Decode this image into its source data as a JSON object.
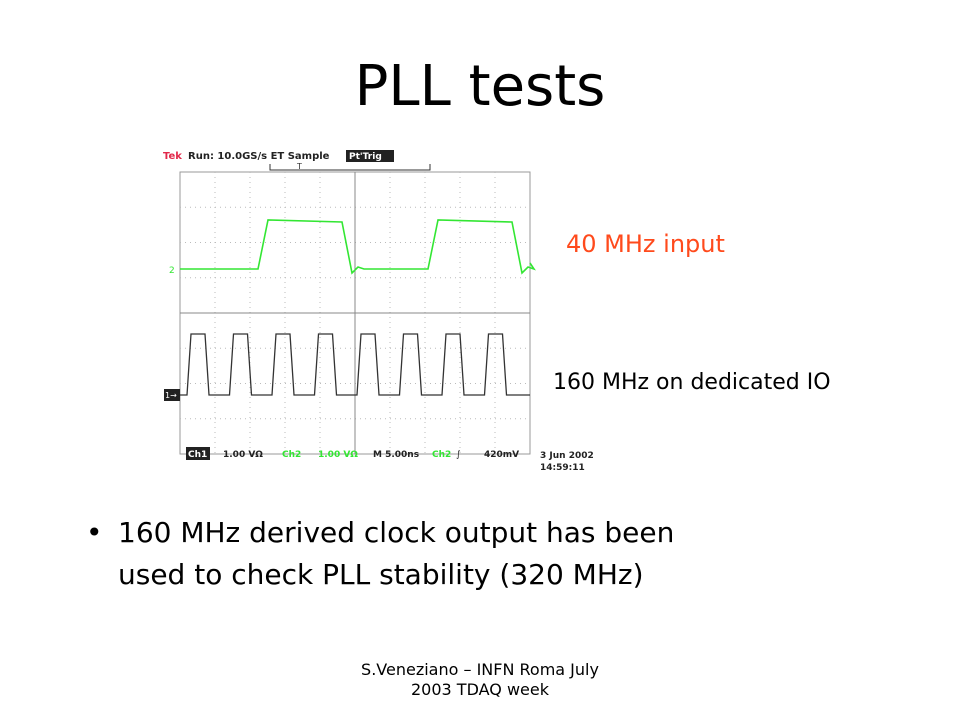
{
  "slide": {
    "title": "PLL tests",
    "label_40": "40 MHz input",
    "label_160": "160 MHz on dedicated IO",
    "bullet_line1": "160 MHz derived clock output has been",
    "bullet_line2": "used to check PLL stability (320 MHz)",
    "footer_line1": "S.Veneziano – INFN Roma July",
    "footer_line2": "2003 TDAQ week"
  },
  "scope": {
    "brand": "Tek",
    "status": "Run: 10.0GS/s ET Sample",
    "trig": "Pt'Trig",
    "trig_marker": "T",
    "ch2_marker": "2",
    "ch1_marker": "1→",
    "ch1": "Ch1",
    "ch1_scale": "1.00 VΩ",
    "ch2": "Ch2",
    "ch2_scale": "1.00 VΩ",
    "timebase": "M 5.00ns",
    "trig_src": "Ch2",
    "trig_level": "420mV",
    "date": "3 Jun 2002",
    "time": "14:59:11",
    "colors": {
      "ch2": "#33e633",
      "ch1": "#333333",
      "brand": "#e2284a",
      "grid": "#b8b8b8"
    }
  }
}
